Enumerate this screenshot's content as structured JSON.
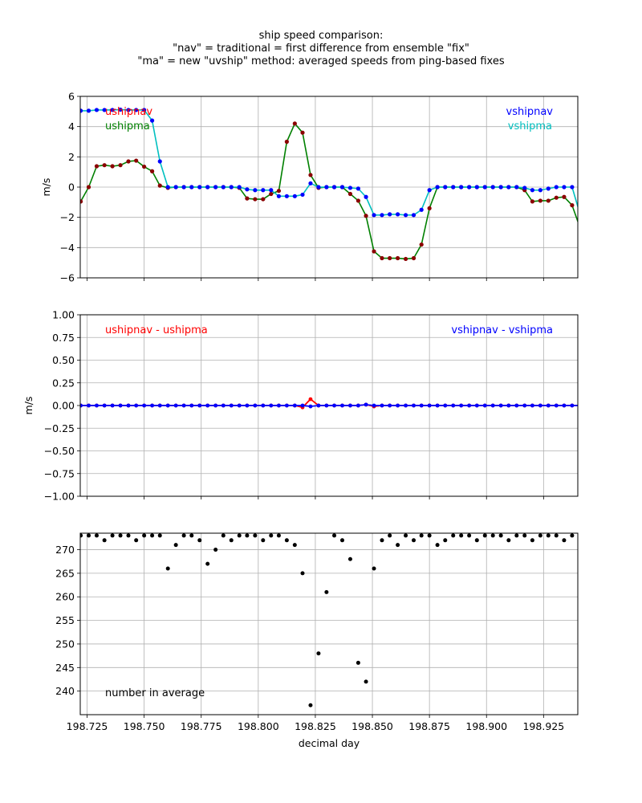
{
  "title_lines": [
    "ship speed comparison:",
    "\"nav\" = traditional = first difference from ensemble \"fix\"",
    "\"ma\" = new \"uvship\" method: averaged speeds from ping-based fixes"
  ],
  "colors": {
    "red": "#ff0000",
    "green": "#008000",
    "blue": "#0000ff",
    "cyan": "#00bfbf",
    "darkred": "#8b0000",
    "black": "#000000",
    "grid": "#b0b0b0"
  },
  "chart_data": [
    {
      "type": "line",
      "panel": "speeds",
      "ylabel": "m/s",
      "xlim": [
        198.722,
        198.94
      ],
      "ylim": [
        -6,
        6
      ],
      "yticks": [
        -6,
        -4,
        -2,
        0,
        2,
        4,
        6
      ],
      "ytick_labels": [
        "−6",
        "−4",
        "−2",
        "0",
        "2",
        "4",
        "6"
      ],
      "grid": true,
      "annotations": [
        {
          "text": "ushipnav",
          "color": "#ff0000",
          "position": "top-left"
        },
        {
          "text": "ushipma",
          "color": "#008000",
          "position": "top-left"
        },
        {
          "text": "vshipnav",
          "color": "#0000ff",
          "position": "top-right"
        },
        {
          "text": "vshipma",
          "color": "#00bfbf",
          "position": "top-right"
        }
      ],
      "x": [
        198.7222,
        198.7257,
        198.7292,
        198.7326,
        198.7361,
        198.7396,
        198.7431,
        198.7465,
        198.75,
        198.7535,
        198.7569,
        198.7604,
        198.7639,
        198.7674,
        198.7708,
        198.7743,
        198.7778,
        198.7813,
        198.7847,
        198.7882,
        198.7917,
        198.7951,
        198.7986,
        198.8021,
        198.8056,
        198.809,
        198.8125,
        198.816,
        198.8194,
        198.8229,
        198.8264,
        198.8299,
        198.8333,
        198.8368,
        198.8403,
        198.8438,
        198.8472,
        198.8507,
        198.8542,
        198.8576,
        198.8611,
        198.8646,
        198.8681,
        198.8715,
        198.875,
        198.8785,
        198.8819,
        198.8854,
        198.8889,
        198.8924,
        198.8958,
        198.8993,
        198.9028,
        198.9063,
        198.9097,
        198.9132,
        198.9167,
        198.9201,
        198.9236,
        198.9271,
        198.9306,
        198.934,
        198.9375,
        198.941
      ],
      "series": [
        {
          "name": "ushipma",
          "color": "#008000",
          "values": [
            -0.95,
            0.0,
            1.38,
            1.45,
            1.38,
            1.45,
            1.7,
            1.75,
            1.35,
            1.05,
            0.1,
            -0.05,
            0.0,
            0.0,
            0.0,
            0.0,
            0.0,
            0.0,
            0.0,
            0.0,
            -0.05,
            -0.75,
            -0.8,
            -0.8,
            -0.45,
            -0.25,
            3.0,
            4.2,
            3.6,
            0.8,
            -0.05,
            0.0,
            0.0,
            0.0,
            -0.45,
            -0.9,
            -1.9,
            -4.25,
            -4.7,
            -4.7,
            -4.7,
            -4.75,
            -4.7,
            -3.8,
            -1.4,
            0.0,
            0.0,
            0.0,
            0.0,
            0.0,
            0.0,
            0.0,
            0.0,
            0.0,
            0.0,
            0.0,
            -0.2,
            -0.95,
            -0.9,
            -0.9,
            -0.7,
            -0.65,
            -1.2,
            -2.7
          ]
        },
        {
          "name": "ushipnav",
          "color": "#8b0000",
          "values": [
            -0.95,
            0.0,
            1.38,
            1.45,
            1.38,
            1.45,
            1.7,
            1.75,
            1.35,
            1.05,
            0.1,
            -0.05,
            0.0,
            0.0,
            0.0,
            0.0,
            0.0,
            0.0,
            0.0,
            0.0,
            -0.05,
            -0.75,
            -0.8,
            -0.8,
            -0.45,
            -0.25,
            3.0,
            4.2,
            3.6,
            0.8,
            -0.05,
            0.0,
            0.0,
            0.0,
            -0.45,
            -0.9,
            -1.9,
            -4.25,
            -4.7,
            -4.7,
            -4.7,
            -4.75,
            -4.7,
            -3.8,
            -1.4,
            0.0,
            0.0,
            0.0,
            0.0,
            0.0,
            0.0,
            0.0,
            0.0,
            0.0,
            0.0,
            0.0,
            -0.2,
            -0.95,
            -0.9,
            -0.9,
            -0.7,
            -0.65,
            -1.2,
            -2.7
          ]
        },
        {
          "name": "vshipma",
          "color": "#00bfbf",
          "values": [
            5.05,
            5.05,
            5.1,
            5.1,
            5.1,
            5.12,
            5.1,
            5.1,
            5.1,
            4.4,
            1.7,
            0.0,
            0.0,
            0.0,
            0.0,
            0.0,
            0.0,
            0.0,
            0.0,
            0.0,
            0.0,
            -0.15,
            -0.2,
            -0.2,
            -0.2,
            -0.6,
            -0.6,
            -0.6,
            -0.5,
            0.25,
            0.0,
            0.0,
            0.0,
            0.0,
            -0.05,
            -0.1,
            -0.65,
            -1.85,
            -1.85,
            -1.8,
            -1.8,
            -1.85,
            -1.85,
            -1.5,
            -0.2,
            0.0,
            0.0,
            0.0,
            0.0,
            0.0,
            0.0,
            0.0,
            0.0,
            0.0,
            0.0,
            0.0,
            -0.05,
            -0.2,
            -0.2,
            -0.1,
            0.0,
            0.0,
            0.0,
            -1.8
          ]
        },
        {
          "name": "vshipnav",
          "color": "#0000ff",
          "values": [
            5.05,
            5.05,
            5.1,
            5.1,
            5.1,
            5.12,
            5.1,
            5.1,
            5.1,
            4.4,
            1.7,
            0.0,
            0.0,
            0.0,
            0.0,
            0.0,
            0.0,
            0.0,
            0.0,
            0.0,
            0.0,
            -0.15,
            -0.2,
            -0.2,
            -0.2,
            -0.6,
            -0.6,
            -0.6,
            -0.5,
            0.25,
            0.0,
            0.0,
            0.0,
            0.0,
            -0.05,
            -0.1,
            -0.65,
            -1.85,
            -1.85,
            -1.8,
            -1.8,
            -1.85,
            -1.85,
            -1.5,
            -0.2,
            0.0,
            0.0,
            0.0,
            0.0,
            0.0,
            0.0,
            0.0,
            0.0,
            0.0,
            0.0,
            0.0,
            -0.05,
            -0.2,
            -0.2,
            -0.1,
            0.0,
            0.0,
            0.0,
            -1.8
          ]
        }
      ]
    },
    {
      "type": "line",
      "panel": "differences",
      "ylabel": "m/s",
      "xlim": [
        198.722,
        198.94
      ],
      "ylim": [
        -1,
        1
      ],
      "yticks": [
        -1,
        -0.75,
        -0.5,
        -0.25,
        0,
        0.25,
        0.5,
        0.75,
        1
      ],
      "ytick_labels": [
        "−1.00",
        "−0.75",
        "−0.50",
        "−0.25",
        "0.00",
        "0.25",
        "0.50",
        "0.75",
        "1.00"
      ],
      "grid": true,
      "annotations": [
        {
          "text": "ushipnav - ushipma",
          "color": "#ff0000",
          "position": "top-left"
        },
        {
          "text": "vshipnav - vshipma",
          "color": "#0000ff",
          "position": "top-right"
        }
      ],
      "x": [
        198.7222,
        198.7257,
        198.7292,
        198.7326,
        198.7361,
        198.7396,
        198.7431,
        198.7465,
        198.75,
        198.7535,
        198.7569,
        198.7604,
        198.7639,
        198.7674,
        198.7708,
        198.7743,
        198.7778,
        198.7813,
        198.7847,
        198.7882,
        198.7917,
        198.7951,
        198.7986,
        198.8021,
        198.8056,
        198.809,
        198.8125,
        198.816,
        198.8194,
        198.8229,
        198.8264,
        198.8299,
        198.8333,
        198.8368,
        198.8403,
        198.8438,
        198.8472,
        198.8507,
        198.8542,
        198.8576,
        198.8611,
        198.8646,
        198.8681,
        198.8715,
        198.875,
        198.8785,
        198.8819,
        198.8854,
        198.8889,
        198.8924,
        198.8958,
        198.8993,
        198.9028,
        198.9063,
        198.9097,
        198.9132,
        198.9167,
        198.9201,
        198.9236,
        198.9271,
        198.9306,
        198.934,
        198.9375,
        198.941
      ],
      "series": [
        {
          "name": "ushipnav - ushipma",
          "color": "#ff0000",
          "values": [
            0,
            0,
            0,
            0,
            0,
            0,
            0,
            0,
            0,
            0,
            0,
            0,
            0,
            0,
            0,
            0,
            0,
            0,
            0,
            0,
            0,
            0,
            0,
            0,
            0,
            0,
            0,
            0,
            -0.02,
            0.07,
            0,
            0,
            0,
            0,
            0,
            0,
            0.01,
            -0.01,
            0,
            0,
            0,
            0,
            0,
            0,
            0,
            0,
            0,
            0,
            0,
            0,
            0,
            0,
            0,
            0,
            0,
            0,
            0,
            0,
            0,
            0,
            0,
            0,
            0,
            0
          ]
        },
        {
          "name": "vshipnav - vshipma",
          "color": "#0000ff",
          "values": [
            0,
            0,
            0,
            0,
            0,
            0,
            0,
            0,
            0,
            0,
            0,
            0,
            0,
            0,
            0,
            0,
            0,
            0,
            0,
            0,
            0,
            0,
            0,
            0,
            0,
            0,
            0,
            0,
            0,
            -0.01,
            0,
            0,
            0,
            0,
            0,
            0,
            0.01,
            0,
            0,
            0,
            0,
            0,
            0,
            0,
            0,
            0,
            0,
            0,
            0,
            0,
            0,
            0,
            0,
            0,
            0,
            0,
            0,
            0,
            0,
            0,
            0,
            0,
            0,
            0
          ]
        }
      ]
    },
    {
      "type": "scatter",
      "panel": "count",
      "xlabel": "decimal day",
      "xlim": [
        198.722,
        198.94
      ],
      "ylim": [
        235,
        273.5
      ],
      "yticks": [
        240,
        245,
        250,
        255,
        260,
        265,
        270
      ],
      "ytick_labels": [
        "240",
        "245",
        "250",
        "255",
        "260",
        "265",
        "270"
      ],
      "xticks": [
        198.725,
        198.75,
        198.775,
        198.8,
        198.825,
        198.85,
        198.875,
        198.9,
        198.925
      ],
      "xtick_labels": [
        "198.725",
        "198.750",
        "198.775",
        "198.800",
        "198.825",
        "198.850",
        "198.875",
        "198.900",
        "198.925"
      ],
      "grid": true,
      "annotations": [
        {
          "text": "number in average",
          "color": "#000000",
          "position": "bottom-left"
        }
      ],
      "x": [
        198.7222,
        198.7257,
        198.7292,
        198.7326,
        198.7361,
        198.7396,
        198.7431,
        198.7465,
        198.75,
        198.7535,
        198.7569,
        198.7604,
        198.7639,
        198.7674,
        198.7708,
        198.7743,
        198.7778,
        198.7813,
        198.7847,
        198.7882,
        198.7917,
        198.7951,
        198.7986,
        198.8021,
        198.8056,
        198.809,
        198.8125,
        198.816,
        198.8194,
        198.8229,
        198.8264,
        198.8299,
        198.8333,
        198.8368,
        198.8403,
        198.8438,
        198.8472,
        198.8507,
        198.8542,
        198.8576,
        198.8611,
        198.8646,
        198.8681,
        198.8715,
        198.875,
        198.8785,
        198.8819,
        198.8854,
        198.8889,
        198.8924,
        198.8958,
        198.8993,
        198.9028,
        198.9063,
        198.9097,
        198.9132,
        198.9167,
        198.9201,
        198.9236,
        198.9271,
        198.9306,
        198.934,
        198.9375,
        198.941
      ],
      "series": [
        {
          "name": "number in average",
          "color": "#000000",
          "values": [
            273,
            273,
            273,
            272,
            273,
            273,
            273,
            272,
            273,
            273,
            273,
            266,
            271,
            273,
            273,
            272,
            267,
            270,
            273,
            272,
            273,
            273,
            273,
            272,
            273,
            273,
            272,
            271,
            265,
            237,
            248,
            261,
            273,
            272,
            268,
            246,
            242,
            266,
            272,
            273,
            271,
            273,
            272,
            273,
            273,
            271,
            272,
            273,
            273,
            273,
            272,
            273,
            273,
            273,
            272,
            273,
            273,
            272,
            273,
            273,
            273,
            272,
            273,
            273
          ]
        }
      ]
    }
  ]
}
